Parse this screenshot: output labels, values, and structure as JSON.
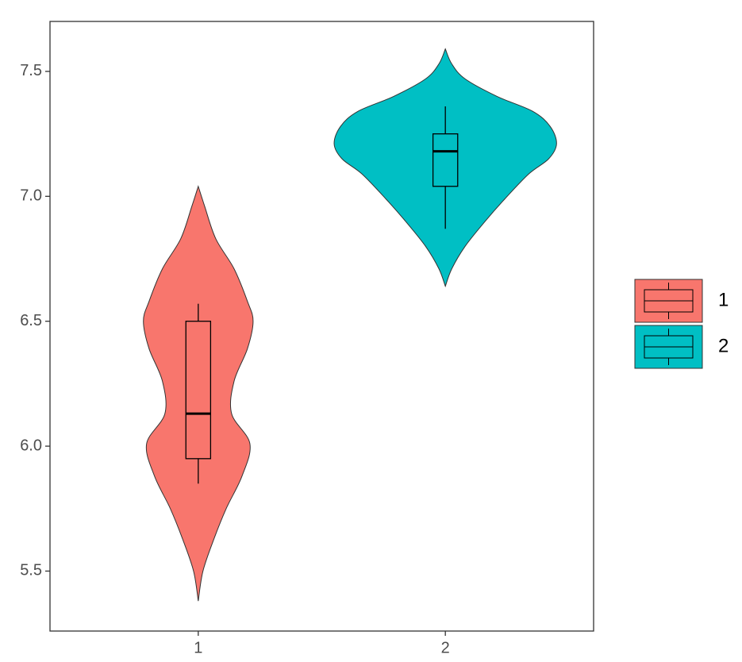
{
  "chart_data": {
    "type": "violin",
    "categories": [
      "1",
      "2"
    ],
    "ylim": [
      5.26,
      7.7
    ],
    "yticks": [
      {
        "value": 5.5,
        "label": "5.5"
      },
      {
        "value": 6.0,
        "label": "6.0"
      },
      {
        "value": 6.5,
        "label": "6.5"
      },
      {
        "value": 7.0,
        "label": "7.0"
      },
      {
        "value": 7.5,
        "label": "7.5"
      }
    ],
    "grid": false,
    "legend": "right",
    "series": [
      {
        "name": "1",
        "color": "#F8766D",
        "box": {
          "whisker_low": 5.85,
          "q1": 5.95,
          "median": 6.13,
          "q3": 6.5,
          "whisker_high": 6.57
        },
        "density_y": [
          7.04,
          6.96,
          6.83,
          6.71,
          6.58,
          6.5,
          6.39,
          6.26,
          6.13,
          6.01,
          5.88,
          5.75,
          5.63,
          5.5,
          5.38
        ],
        "density_width": [
          0,
          0.026,
          0.071,
          0.145,
          0.199,
          0.222,
          0.199,
          0.145,
          0.135,
          0.209,
          0.177,
          0.113,
          0.064,
          0.019,
          0
        ]
      },
      {
        "name": "2",
        "color": "#00BFC4",
        "box": {
          "whisker_low": 6.87,
          "q1": 7.04,
          "median": 7.18,
          "q3": 7.25,
          "whisker_high": 7.36
        },
        "density_y": [
          7.59,
          7.53,
          7.47,
          7.4,
          7.34,
          7.28,
          7.21,
          7.15,
          7.09,
          6.99,
          6.9,
          6.8,
          6.71,
          6.64
        ],
        "density_width": [
          0,
          0.026,
          0.08,
          0.209,
          0.354,
          0.424,
          0.45,
          0.418,
          0.338,
          0.241,
          0.161,
          0.08,
          0.026,
          0
        ]
      }
    ]
  }
}
